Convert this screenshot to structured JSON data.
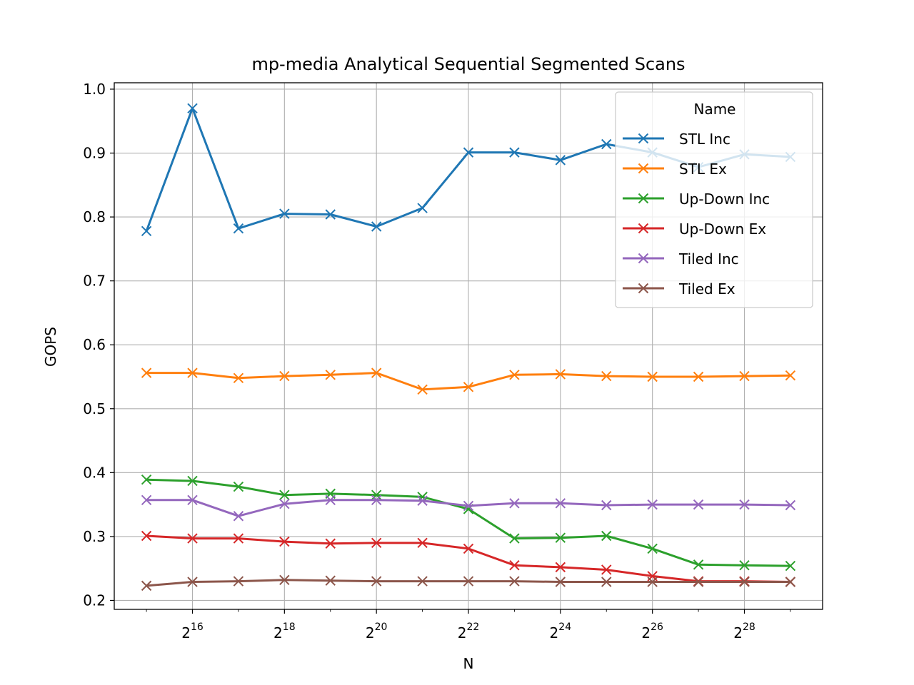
{
  "chart_data": {
    "type": "line",
    "title": "mp-media Analytical Sequential Segmented Scans",
    "xlabel": "N",
    "ylabel": "GOPS",
    "x_scale": "log2",
    "x": [
      32768,
      65536,
      131072,
      262144,
      524288,
      1048576,
      2097152,
      4194304,
      8388608,
      16777216,
      33554432,
      67108864,
      134217728,
      268435456,
      536870912
    ],
    "x_ticks": [
      {
        "base": "2",
        "exp": "16",
        "value": 65536
      },
      {
        "base": "2",
        "exp": "18",
        "value": 262144
      },
      {
        "base": "2",
        "exp": "20",
        "value": 1048576
      },
      {
        "base": "2",
        "exp": "22",
        "value": 4194304
      },
      {
        "base": "2",
        "exp": "24",
        "value": 16777216
      },
      {
        "base": "2",
        "exp": "26",
        "value": 67108864
      },
      {
        "base": "2",
        "exp": "28",
        "value": 268435456
      }
    ],
    "y_ticks": [
      "0.2",
      "0.3",
      "0.4",
      "0.5",
      "0.6",
      "0.7",
      "0.8",
      "0.9",
      "1.0"
    ],
    "ylim": [
      0.186,
      1.01
    ],
    "grid": true,
    "legend": {
      "title": "Name",
      "placement": "top-right"
    },
    "series": [
      {
        "name": "STL Inc",
        "color": "#1f77b4",
        "values": [
          0.778,
          0.97,
          0.782,
          0.805,
          0.804,
          0.785,
          0.814,
          0.901,
          0.901,
          0.889,
          0.914,
          0.901,
          0.878,
          0.898,
          0.894
        ]
      },
      {
        "name": "STL Ex",
        "color": "#ff7f0e",
        "values": [
          0.556,
          0.556,
          0.548,
          0.551,
          0.553,
          0.556,
          0.53,
          0.534,
          0.553,
          0.554,
          0.551,
          0.55,
          0.55,
          0.551,
          0.552
        ]
      },
      {
        "name": "Up-Down Inc",
        "color": "#2ca02c",
        "values": [
          0.389,
          0.387,
          0.378,
          0.365,
          0.367,
          0.365,
          0.362,
          0.343,
          0.297,
          0.298,
          0.301,
          0.281,
          0.256,
          0.255,
          0.254
        ]
      },
      {
        "name": "Up-Down Ex",
        "color": "#d62728",
        "values": [
          0.301,
          0.297,
          0.297,
          0.292,
          0.289,
          0.29,
          0.29,
          0.281,
          0.255,
          0.252,
          0.248,
          0.238,
          0.23,
          0.23,
          0.229
        ]
      },
      {
        "name": "Tiled Inc",
        "color": "#9467bd",
        "values": [
          0.357,
          0.357,
          0.332,
          0.351,
          0.357,
          0.357,
          0.356,
          0.348,
          0.352,
          0.352,
          0.349,
          0.35,
          0.35,
          0.35,
          0.349
        ]
      },
      {
        "name": "Tiled Ex",
        "color": "#8c564b",
        "values": [
          0.223,
          0.229,
          0.23,
          0.232,
          0.231,
          0.23,
          0.23,
          0.23,
          0.23,
          0.229,
          0.229,
          0.229,
          0.229,
          0.229,
          0.229
        ]
      }
    ]
  }
}
